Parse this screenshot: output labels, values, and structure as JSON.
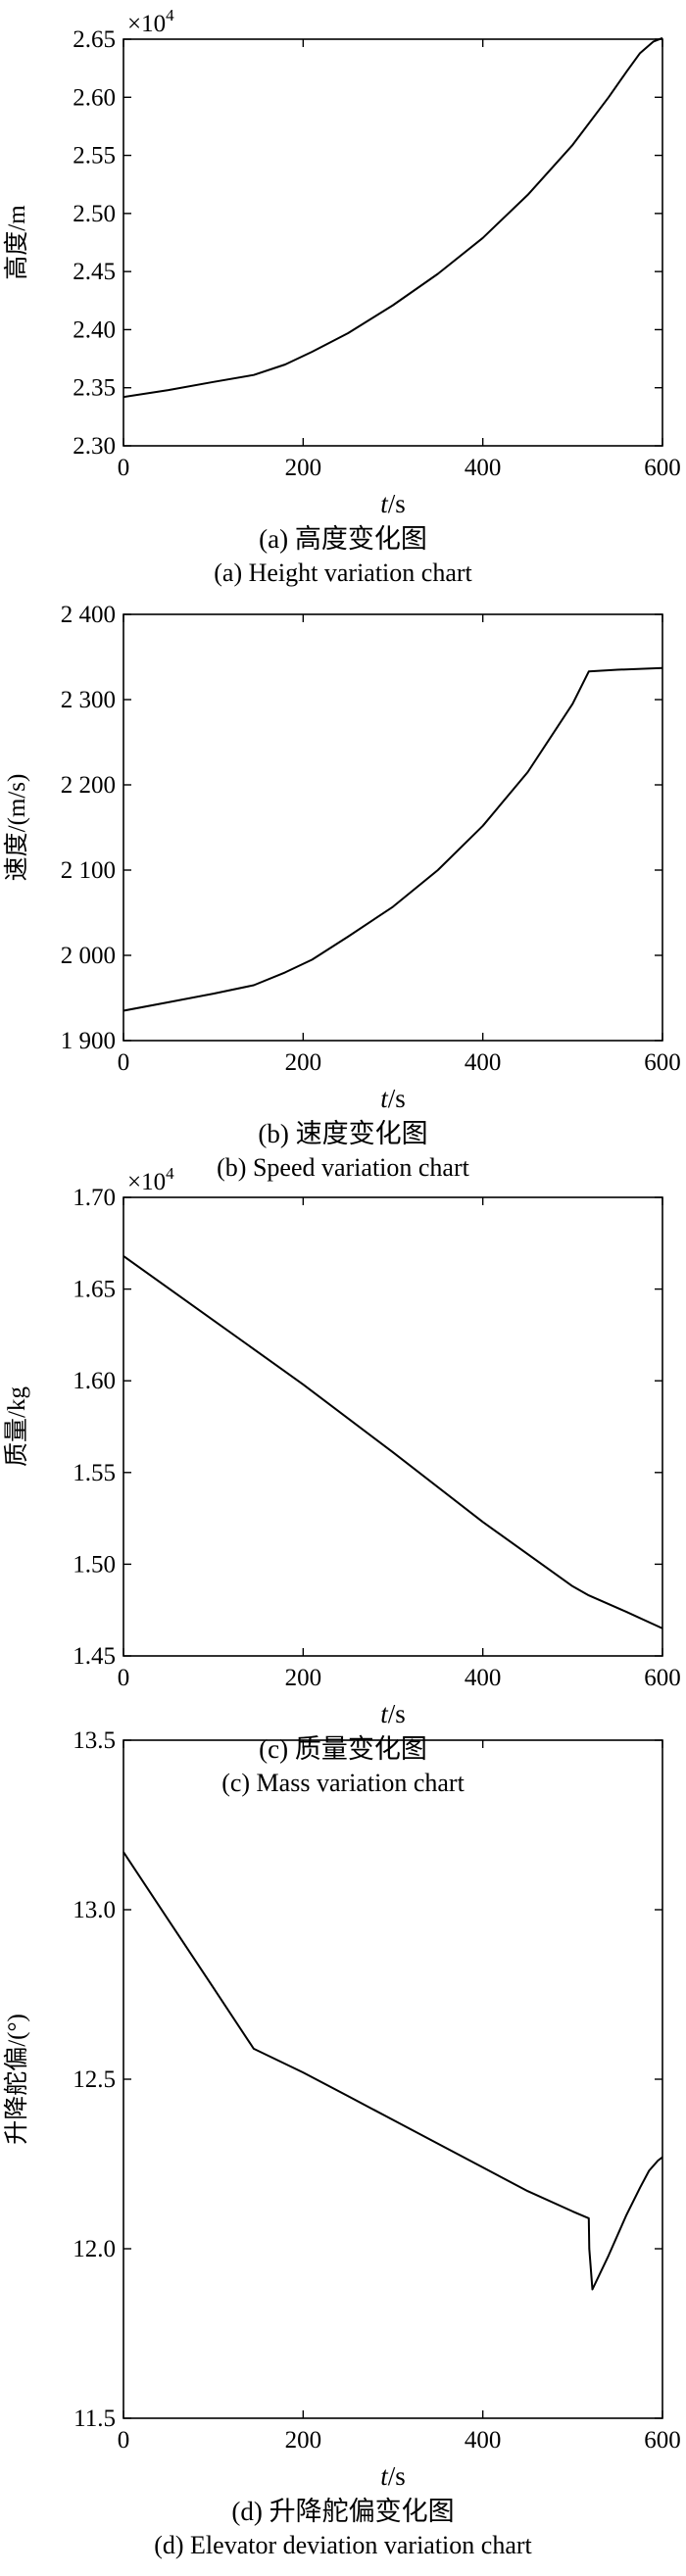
{
  "chart_data": [
    {
      "type": "line",
      "ylabel": "高度/m",
      "xlabel_var": "t",
      "xlabel_unit": "/s",
      "y_multiplier_base": "×10",
      "y_multiplier_exp": "4",
      "caption_cn": "(a) 高度变化图",
      "caption_en": "(a) Height variation chart",
      "xlim": [
        0,
        600
      ],
      "ylim": [
        2.3,
        2.65
      ],
      "xticks": [
        0,
        200,
        400,
        600
      ],
      "xtick_labels": [
        "0",
        "200",
        "400",
        "600"
      ],
      "yticks": [
        2.3,
        2.35,
        2.4,
        2.45,
        2.5,
        2.55,
        2.6,
        2.65
      ],
      "ytick_labels": [
        "2.30",
        "2.35",
        "2.40",
        "2.45",
        "2.50",
        "2.55",
        "2.60",
        "2.65"
      ],
      "x": [
        0,
        50,
        100,
        145,
        180,
        210,
        250,
        300,
        350,
        400,
        450,
        500,
        540,
        560,
        575,
        590,
        600
      ],
      "y": [
        2.342,
        2.348,
        2.355,
        2.361,
        2.37,
        2.381,
        2.397,
        2.421,
        2.448,
        2.479,
        2.516,
        2.559,
        2.6,
        2.622,
        2.638,
        2.648,
        2.651
      ]
    },
    {
      "type": "line",
      "ylabel": "速度/(m/s)",
      "xlabel_var": "t",
      "xlabel_unit": "/s",
      "caption_cn": "(b) 速度变化图",
      "caption_en": "(b) Speed variation chart",
      "xlim": [
        0,
        600
      ],
      "ylim": [
        1900,
        2400
      ],
      "xticks": [
        0,
        200,
        400,
        600
      ],
      "xtick_labels": [
        "0",
        "200",
        "400",
        "600"
      ],
      "yticks": [
        1900,
        2000,
        2100,
        2200,
        2300,
        2400
      ],
      "ytick_labels": [
        "1 900",
        "2 000",
        "2 100",
        "2 200",
        "2 300",
        "2 400"
      ],
      "x": [
        0,
        50,
        100,
        145,
        180,
        210,
        250,
        300,
        350,
        400,
        450,
        500,
        518,
        550,
        600
      ],
      "y": [
        1935,
        1945,
        1955,
        1965,
        1980,
        1995,
        2022,
        2057,
        2100,
        2152,
        2215,
        2295,
        2333,
        2335,
        2337
      ]
    },
    {
      "type": "line",
      "ylabel": "质量/kg",
      "xlabel_var": "t",
      "xlabel_unit": "/s",
      "y_multiplier_base": "×10",
      "y_multiplier_exp": "4",
      "caption_cn": "(c) 质量变化图",
      "caption_en": "(c) Mass variation chart",
      "xlim": [
        0,
        600
      ],
      "ylim": [
        1.45,
        1.7
      ],
      "xticks": [
        0,
        200,
        400,
        600
      ],
      "xtick_labels": [
        "0",
        "200",
        "400",
        "600"
      ],
      "yticks": [
        1.45,
        1.5,
        1.55,
        1.6,
        1.65,
        1.7
      ],
      "ytick_labels": [
        "1.45",
        "1.50",
        "1.55",
        "1.60",
        "1.65",
        "1.70"
      ],
      "x": [
        0,
        100,
        200,
        300,
        400,
        500,
        518,
        560,
        600
      ],
      "y": [
        1.668,
        1.633,
        1.598,
        1.561,
        1.523,
        1.488,
        1.483,
        1.474,
        1.465
      ]
    },
    {
      "type": "line",
      "ylabel": "升降舵偏/(°)",
      "xlabel_var": "t",
      "xlabel_unit": "/s",
      "caption_cn": "(d) 升降舵偏变化图",
      "caption_en": "(d) Elevator deviation variation chart",
      "xlim": [
        0,
        600
      ],
      "ylim": [
        11.5,
        13.5
      ],
      "xticks": [
        0,
        200,
        400,
        600
      ],
      "xtick_labels": [
        "0",
        "200",
        "400",
        "600"
      ],
      "yticks": [
        11.5,
        12.0,
        12.5,
        13.0,
        13.5
      ],
      "ytick_labels": [
        "11.5",
        "12.0",
        "12.5",
        "13.0",
        "13.5"
      ],
      "x": [
        0,
        50,
        100,
        145,
        200,
        250,
        300,
        350,
        400,
        450,
        500,
        518,
        518.5,
        522,
        540,
        560,
        575,
        585,
        595,
        600
      ],
      "y": [
        13.17,
        12.97,
        12.77,
        12.59,
        12.52,
        12.45,
        12.38,
        12.31,
        12.24,
        12.17,
        12.11,
        12.09,
        12.0,
        11.88,
        11.98,
        12.1,
        12.18,
        12.23,
        12.26,
        12.27
      ]
    }
  ]
}
